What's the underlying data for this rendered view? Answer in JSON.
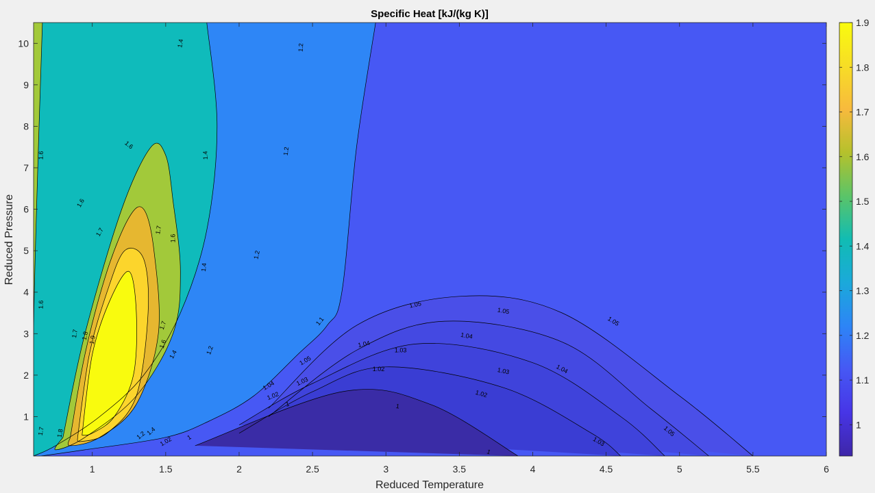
{
  "chart_data": {
    "type": "contour",
    "title": "Specific Heat [kJ/(kg K)]",
    "xlabel": "Reduced Temperature",
    "ylabel": "Reduced Pressure",
    "xlim": [
      0.6,
      6
    ],
    "ylim": [
      0.05,
      10.5
    ],
    "xticks": [
      1,
      1.5,
      2,
      2.5,
      3,
      3.5,
      4,
      4.5,
      5,
      5.5,
      6
    ],
    "xtick_labels": [
      "1",
      "1.5",
      "2",
      "2.5",
      "3",
      "3.5",
      "4",
      "4.5",
      "5",
      "5.5",
      "6"
    ],
    "yticks": [
      1,
      2,
      3,
      4,
      5,
      6,
      7,
      8,
      9,
      10
    ],
    "ytick_labels": [
      "1",
      "2",
      "3",
      "4",
      "5",
      "6",
      "7",
      "8",
      "9",
      "10"
    ],
    "colorbar": {
      "range": [
        0.93,
        1.9
      ],
      "ticks": [
        1,
        1.1,
        1.2,
        1.3,
        1.4,
        1.5,
        1.6,
        1.7,
        1.8,
        1.9
      ],
      "tick_labels": [
        "1",
        "1.1",
        "1.2",
        "1.3",
        "1.4",
        "1.5",
        "1.6",
        "1.7",
        "1.8",
        "1.9"
      ],
      "colormap": "parula"
    },
    "levels": [
      {
        "value": 1.1,
        "label": "1.1",
        "color": "#4758f4",
        "points": [
          [
            2.93,
            10.5
          ],
          [
            2.8,
            7.5
          ],
          [
            2.7,
            4
          ],
          [
            2.6,
            3.2
          ],
          [
            2.4,
            2.5
          ],
          [
            2.1,
            1.5
          ],
          [
            1.8,
            0.9
          ],
          [
            1.5,
            0.5
          ],
          [
            0.95,
            0.2
          ],
          [
            0.65,
            0.05
          ]
        ],
        "labels": [
          {
            "x": 2.55,
            "y": 3.3,
            "angle": -52
          }
        ]
      },
      {
        "value": 1.2,
        "label": "1.2",
        "color": "#2e86f6",
        "points": [
          [
            1.78,
            10.5
          ],
          [
            1.85,
            8
          ],
          [
            1.78,
            5.5
          ],
          [
            1.6,
            3.5
          ],
          [
            1.35,
            2
          ],
          [
            1.05,
            1
          ],
          [
            0.75,
            0.3
          ],
          [
            0.6,
            0.05
          ]
        ],
        "labels": [
          {
            "x": 1.33,
            "y": 0.55,
            "angle": -40
          },
          {
            "x": 1.8,
            "y": 2.6,
            "angle": -70
          },
          {
            "x": 2.12,
            "y": 4.9,
            "angle": -78
          },
          {
            "x": 2.32,
            "y": 7.4,
            "angle": -82
          },
          {
            "x": 2.42,
            "y": 9.9,
            "angle": -86
          }
        ]
      },
      {
        "value": 1.4,
        "label": "1.4",
        "color": "#0fbbbb",
        "points": [
          [
            0.66,
            10.5
          ],
          [
            0.62,
            6
          ],
          [
            0.6,
            3
          ],
          [
            0.6,
            0.05
          ]
        ],
        "labels": [
          {
            "x": 1.55,
            "y": 2.5,
            "angle": -62
          },
          {
            "x": 1.76,
            "y": 4.6,
            "angle": -84
          },
          {
            "x": 1.77,
            "y": 7.3,
            "angle": -92
          },
          {
            "x": 1.6,
            "y": 10,
            "angle": -80
          },
          {
            "x": 1.4,
            "y": 0.65,
            "angle": -40
          }
        ]
      },
      {
        "value": 1.6,
        "label": "1.6",
        "color": "#a2c93a",
        "points": [
          [
            0.8,
            0.5
          ],
          [
            0.95,
            3
          ],
          [
            1.2,
            6
          ],
          [
            1.4,
            7.5
          ],
          [
            1.5,
            7.3
          ],
          [
            1.55,
            6.2
          ],
          [
            1.6,
            4.5
          ],
          [
            1.55,
            3
          ],
          [
            1.3,
            1.5
          ],
          [
            0.95,
            0.5
          ],
          [
            0.75,
            0.2
          ]
        ],
        "labels": [
          {
            "x": 1.25,
            "y": 7.55,
            "angle": 40
          },
          {
            "x": 0.92,
            "y": 6.15,
            "angle": -60
          },
          {
            "x": 1.55,
            "y": 5.3,
            "angle": -90
          },
          {
            "x": 1.48,
            "y": 2.75,
            "angle": -70
          },
          {
            "x": 0.65,
            "y": 7.3,
            "angle": -88
          },
          {
            "x": 0.65,
            "y": 3.7,
            "angle": -88
          }
        ]
      },
      {
        "value": 1.7,
        "label": "1.7",
        "color": "#e6b730",
        "points": [
          [
            0.85,
            0.5
          ],
          [
            0.95,
            2.5
          ],
          [
            1.1,
            4.5
          ],
          [
            1.25,
            5.8
          ],
          [
            1.35,
            6
          ],
          [
            1.42,
            5
          ],
          [
            1.45,
            3
          ],
          [
            1.3,
            1.3
          ],
          [
            1.05,
            0.5
          ],
          [
            0.85,
            0.3
          ]
        ],
        "labels": [
          {
            "x": 1.05,
            "y": 5.45,
            "angle": -60
          },
          {
            "x": 1.45,
            "y": 5.5,
            "angle": -80
          },
          {
            "x": 0.88,
            "y": 3.0,
            "angle": -80
          },
          {
            "x": 1.48,
            "y": 3.2,
            "angle": -70
          },
          {
            "x": 0.65,
            "y": 0.65,
            "angle": -80
          }
        ]
      },
      {
        "value": 1.8,
        "label": "1.8",
        "color": "#fcd52c",
        "points": [
          [
            0.9,
            0.5
          ],
          [
            0.98,
            2.5
          ],
          [
            1.1,
            4
          ],
          [
            1.22,
            5
          ],
          [
            1.35,
            4.8
          ],
          [
            1.38,
            3.5
          ],
          [
            1.3,
            1.5
          ],
          [
            1.1,
            0.6
          ],
          [
            0.92,
            0.4
          ]
        ],
        "labels": [
          {
            "x": 0.95,
            "y": 2.95,
            "angle": -78
          },
          {
            "x": 0.78,
            "y": 0.6,
            "angle": -80
          }
        ]
      },
      {
        "value": 1.9,
        "label": "1.9",
        "color": "#f9fb0e",
        "points": [
          [
            0.93,
            0.55
          ],
          [
            1.0,
            2.5
          ],
          [
            1.12,
            3.8
          ],
          [
            1.25,
            4.5
          ],
          [
            1.3,
            3.5
          ],
          [
            1.28,
            2
          ],
          [
            1.15,
            1
          ],
          [
            1.0,
            0.6
          ]
        ],
        "labels": [
          {
            "x": 1.0,
            "y": 2.85,
            "angle": -78
          }
        ]
      },
      {
        "value": 1.05,
        "label": "1.05",
        "color": "#4a4fe8",
        "points": [
          [
            2.2,
            1.2
          ],
          [
            2.8,
            3.2
          ],
          [
            3.5,
            3.9
          ],
          [
            4.2,
            3.5
          ],
          [
            5.0,
            1.5
          ],
          [
            5.5,
            0.05
          ]
        ],
        "labels": [
          {
            "x": 2.45,
            "y": 2.35,
            "angle": -30
          },
          {
            "x": 3.2,
            "y": 3.7,
            "angle": -12
          },
          {
            "x": 3.8,
            "y": 3.55,
            "angle": 10
          },
          {
            "x": 4.55,
            "y": 3.3,
            "angle": 32
          },
          {
            "x": 4.93,
            "y": 0.65,
            "angle": 40
          }
        ]
      },
      {
        "value": 1.04,
        "label": "1.04",
        "color": "#4449e2",
        "points": [
          [
            2.2,
            1.0
          ],
          [
            2.8,
            2.6
          ],
          [
            3.4,
            3.3
          ],
          [
            4.2,
            2.8
          ],
          [
            4.8,
            1.2
          ],
          [
            5.2,
            0.05
          ]
        ],
        "labels": [
          {
            "x": 2.2,
            "y": 1.75,
            "angle": -30
          },
          {
            "x": 2.85,
            "y": 2.75,
            "angle": -12
          },
          {
            "x": 3.55,
            "y": 2.95,
            "angle": 10
          },
          {
            "x": 4.2,
            "y": 2.15,
            "angle": 28
          }
        ]
      },
      {
        "value": 1.03,
        "label": "1.03",
        "color": "#3f43db",
        "points": [
          [
            2.0,
            0.8
          ],
          [
            2.5,
            1.8
          ],
          [
            3.2,
            2.75
          ],
          [
            4.0,
            2.3
          ],
          [
            4.6,
            1.0
          ],
          [
            4.9,
            0.05
          ]
        ],
        "labels": [
          {
            "x": 2.43,
            "y": 1.85,
            "angle": -25
          },
          {
            "x": 3.1,
            "y": 2.6,
            "angle": 0
          },
          {
            "x": 3.8,
            "y": 2.1,
            "angle": 12
          },
          {
            "x": 4.45,
            "y": 0.4,
            "angle": 30
          }
        ]
      },
      {
        "value": 1.02,
        "label": "1.02",
        "color": "#3a3dd3",
        "points": [
          [
            2.0,
            0.6
          ],
          [
            2.5,
            1.6
          ],
          [
            3.0,
            2.2
          ],
          [
            3.8,
            1.7
          ],
          [
            4.4,
            0.6
          ],
          [
            4.6,
            0.05
          ]
        ],
        "labels": [
          {
            "x": 2.23,
            "y": 1.5,
            "angle": -22
          },
          {
            "x": 2.95,
            "y": 2.15,
            "angle": 0
          },
          {
            "x": 3.65,
            "y": 1.55,
            "angle": 16
          },
          {
            "x": 1.5,
            "y": 0.4,
            "angle": -30
          }
        ]
      },
      {
        "value": 1,
        "label": "1",
        "color": "#3a2ca6",
        "points": [
          [
            1.7,
            0.3
          ],
          [
            2.7,
            1.6
          ],
          [
            3.3,
            1.3
          ],
          [
            3.9,
            0.05
          ]
        ],
        "labels": [
          {
            "x": 2.33,
            "y": 1.3,
            "angle": -12
          },
          {
            "x": 3.08,
            "y": 1.25,
            "angle": 8
          },
          {
            "x": 3.7,
            "y": 0.15,
            "angle": 20
          },
          {
            "x": 1.66,
            "y": 0.5,
            "angle": -30
          }
        ]
      }
    ]
  }
}
